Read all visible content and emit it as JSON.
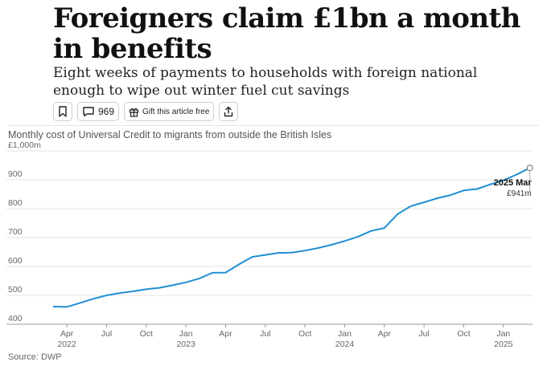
{
  "article": {
    "headline_line1": "Foreigners claim £1bn a month",
    "headline_line2": "in benefits",
    "standfirst_line1": "Eight weeks of payments to households with foreign national",
    "standfirst_line2": "enough to wipe out winter fuel cut savings",
    "comment_count": "969",
    "gift_label": "Gift this article free"
  },
  "icons": {
    "bookmark": "bookmark-icon",
    "comment": "comment-icon",
    "gift": "gift-icon",
    "share": "share-icon"
  },
  "chart_data": {
    "type": "line",
    "title": "Monthly cost of Universal Credit to migrants from outside the British Isles",
    "source": "Source: DWP",
    "ylim": [
      400,
      1000
    ],
    "yticks": [
      400,
      500,
      600,
      700,
      800,
      900,
      1000
    ],
    "ytick_labels": [
      "400",
      "500",
      "600",
      "700",
      "800",
      "900",
      "£1,000m"
    ],
    "grid": true,
    "xticks": [
      {
        "month": "2022-04",
        "label": "Apr",
        "year": "2022"
      },
      {
        "month": "2022-07",
        "label": "Jul",
        "year": ""
      },
      {
        "month": "2022-10",
        "label": "Oct",
        "year": ""
      },
      {
        "month": "2023-01",
        "label": "Jan",
        "year": "2023"
      },
      {
        "month": "2023-04",
        "label": "Apr",
        "year": ""
      },
      {
        "month": "2023-07",
        "label": "Jul",
        "year": ""
      },
      {
        "month": "2023-10",
        "label": "Oct",
        "year": ""
      },
      {
        "month": "2024-01",
        "label": "Jan",
        "year": "2024"
      },
      {
        "month": "2024-04",
        "label": "Apr",
        "year": ""
      },
      {
        "month": "2024-07",
        "label": "Jul",
        "year": ""
      },
      {
        "month": "2024-10",
        "label": "Oct",
        "year": ""
      },
      {
        "month": "2025-01",
        "label": "Jan",
        "year": "2025"
      }
    ],
    "series": [
      {
        "color": "#1f8fd1",
        "x": [
          "2022-03",
          "2022-04",
          "2022-05",
          "2022-06",
          "2022-07",
          "2022-08",
          "2022-09",
          "2022-10",
          "2022-11",
          "2022-12",
          "2023-01",
          "2023-02",
          "2023-03",
          "2023-04",
          "2023-05",
          "2023-06",
          "2023-07",
          "2023-08",
          "2023-09",
          "2023-10",
          "2023-11",
          "2023-12",
          "2024-01",
          "2024-02",
          "2024-03",
          "2024-04",
          "2024-05",
          "2024-06",
          "2024-07",
          "2024-08",
          "2024-09",
          "2024-10",
          "2024-11",
          "2024-12",
          "2025-01",
          "2025-02",
          "2025-03"
        ],
        "values": [
          461,
          460,
          474,
          488,
          500,
          508,
          514,
          521,
          526,
          535,
          545,
          558,
          578,
          579,
          607,
          633,
          640,
          647,
          648,
          655,
          664,
          675,
          688,
          703,
          723,
          733,
          781,
          809,
          822,
          836,
          847,
          863,
          868,
          884,
          898,
          918,
          941
        ]
      }
    ],
    "annotation": {
      "date_label": "2025 Mar",
      "value_label": "£941m"
    }
  }
}
